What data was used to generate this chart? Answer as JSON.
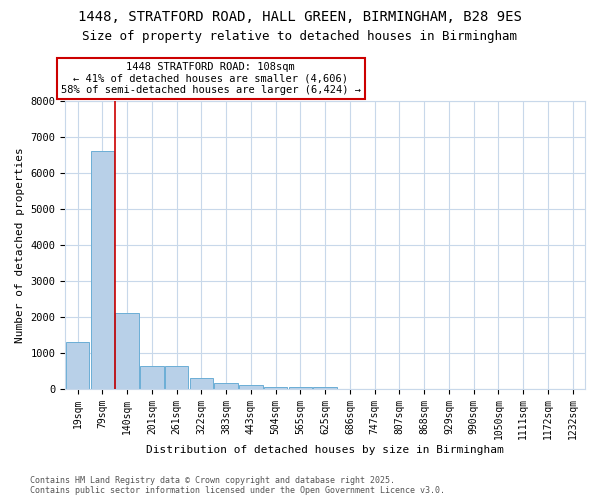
{
  "title1": "1448, STRATFORD ROAD, HALL GREEN, BIRMINGHAM, B28 9ES",
  "title2": "Size of property relative to detached houses in Birmingham",
  "xlabel": "Distribution of detached houses by size in Birmingham",
  "ylabel": "Number of detached properties",
  "categories": [
    "19sqm",
    "79sqm",
    "140sqm",
    "201sqm",
    "261sqm",
    "322sqm",
    "383sqm",
    "443sqm",
    "504sqm",
    "565sqm",
    "625sqm",
    "686sqm",
    "747sqm",
    "807sqm",
    "868sqm",
    "929sqm",
    "990sqm",
    "1050sqm",
    "1111sqm",
    "1172sqm",
    "1232sqm"
  ],
  "values": [
    1300,
    6600,
    2100,
    620,
    620,
    300,
    150,
    100,
    50,
    50,
    50,
    0,
    0,
    0,
    0,
    0,
    0,
    0,
    0,
    0,
    0
  ],
  "bar_color": "#b8d0e8",
  "bar_edge_color": "#6baed6",
  "background_color": "#ffffff",
  "grid_color": "#c8d8ea",
  "red_line_x": 1.52,
  "annotation_text": "1448 STRATFORD ROAD: 108sqm\n← 41% of detached houses are smaller (4,606)\n58% of semi-detached houses are larger (6,424) →",
  "annotation_box_color": "#ffffff",
  "annotation_border_color": "#cc0000",
  "footer_text": "Contains HM Land Registry data © Crown copyright and database right 2025.\nContains public sector information licensed under the Open Government Licence v3.0.",
  "ylim": [
    0,
    8000
  ],
  "yticks": [
    0,
    1000,
    2000,
    3000,
    4000,
    5000,
    6000,
    7000,
    8000
  ]
}
